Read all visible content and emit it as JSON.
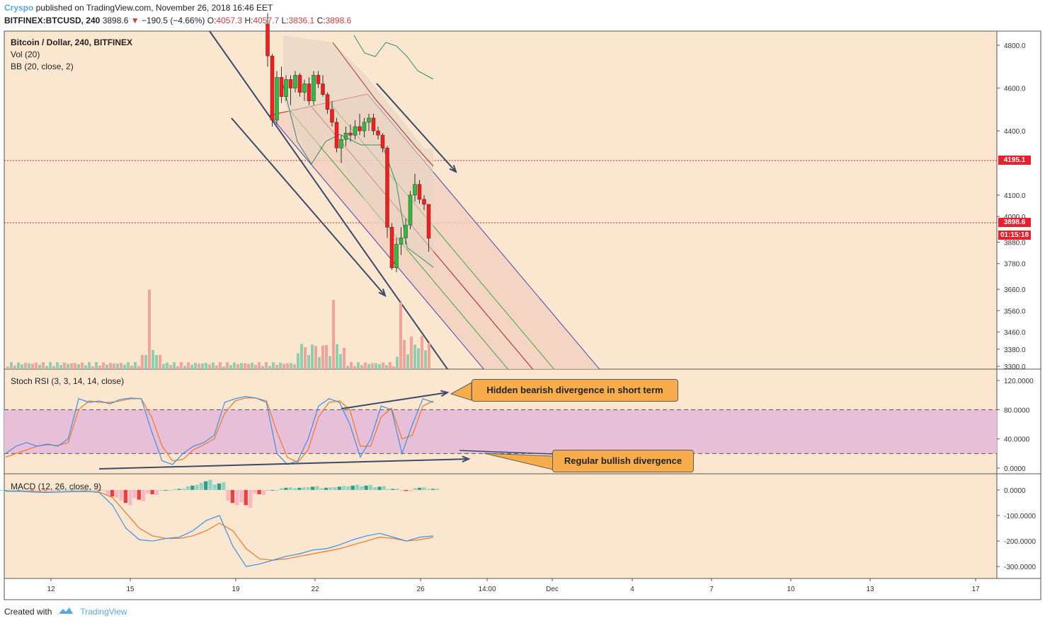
{
  "header": {
    "author": "Cryspo",
    "published": " published on TradingView.com, November 26, 2018 16:46 EET",
    "symbol": "BITFINEX:BTCUSD, 240",
    "last": "3898.6",
    "change": "−190.5 (−4.66%)",
    "o_label": "O:",
    "o": "4057.3",
    "h_label": "H:",
    "h": "4057.7",
    "l_label": "L:",
    "l": "3836.1",
    "c_label": "C:",
    "c": "3898.6"
  },
  "legend": {
    "title": "Bitcoin / Dollar, 240, BITFINEX",
    "vol": "Vol (20)",
    "bb": "BB (20, close, 2)",
    "stoch": "Stoch RSI (3, 3, 14, 14, close)",
    "macd": "MACD (12, 26, close, 9)"
  },
  "badges": {
    "level": "4195.1",
    "price": "3898.6",
    "timer": "01:15:18"
  },
  "callouts": {
    "hidden": "Hidden bearish divergence in short term",
    "regular": "Regular bullish divergence"
  },
  "footer": {
    "created": "Created with",
    "brand": "TradingView"
  },
  "colors": {
    "background": "#fbe6cf",
    "up": "#2dbd3d",
    "down": "#ff1a1a",
    "stoch_band": "#e7bfd9",
    "callout": "#f7ad4b",
    "k_line": "#3c8fe6",
    "d_line": "#f07a22"
  },
  "chart_data": {
    "type": "candlestick",
    "price_axis": {
      "ticks": [
        4800,
        4600,
        4400,
        4100,
        4000,
        3880,
        3780,
        3660,
        3560,
        3460,
        3380,
        3300
      ],
      "range": [
        3300,
        4800
      ]
    },
    "time_axis": [
      "12",
      "15",
      "19",
      "22",
      "26",
      "14:00",
      "Dec",
      "4",
      "7",
      "10",
      "13",
      "17"
    ],
    "candles": [
      [
        4900,
        4950,
        4700,
        4750
      ],
      [
        4750,
        4760,
        4420,
        4450
      ],
      [
        4450,
        4680,
        4430,
        4650
      ],
      [
        4650,
        4700,
        4530,
        4560
      ],
      [
        4560,
        4660,
        4540,
        4640
      ],
      [
        4640,
        4660,
        4520,
        4600
      ],
      [
        4600,
        4680,
        4580,
        4660
      ],
      [
        4660,
        4670,
        4560,
        4580
      ],
      [
        4580,
        4640,
        4540,
        4620
      ],
      [
        4620,
        4650,
        4520,
        4540
      ],
      [
        4540,
        4680,
        4520,
        4660
      ],
      [
        4660,
        4680,
        4600,
        4620
      ],
      [
        4620,
        4660,
        4560,
        4570
      ],
      [
        4570,
        4580,
        4480,
        4500
      ],
      [
        4500,
        4540,
        4420,
        4440
      ],
      [
        4440,
        4460,
        4300,
        4320
      ],
      [
        4320,
        4380,
        4250,
        4360
      ],
      [
        4360,
        4420,
        4330,
        4390
      ],
      [
        4390,
        4430,
        4350,
        4380
      ],
      [
        4380,
        4450,
        4360,
        4420
      ],
      [
        4420,
        4480,
        4380,
        4400
      ],
      [
        4400,
        4460,
        4370,
        4440
      ],
      [
        4440,
        4480,
        4400,
        4460
      ],
      [
        4460,
        4480,
        4380,
        4400
      ],
      [
        4400,
        4420,
        4360,
        4380
      ],
      [
        4380,
        4390,
        4300,
        4320
      ],
      [
        4320,
        4330,
        3900,
        3950
      ],
      [
        3950,
        3970,
        3750,
        3760
      ],
      [
        3760,
        3900,
        3740,
        3870
      ],
      [
        3870,
        3950,
        3820,
        3900
      ],
      [
        3900,
        3990,
        3870,
        3960
      ],
      [
        3960,
        4120,
        3940,
        4100
      ],
      [
        4100,
        4200,
        4070,
        4150
      ],
      [
        4150,
        4170,
        4060,
        4080
      ],
      [
        4080,
        4100,
        4030,
        4057
      ],
      [
        4057,
        4057,
        3836,
        3898
      ]
    ],
    "volume_peaks": [
      {
        "x": "14",
        "value": 650
      },
      {
        "x": "20",
        "value": 550
      },
      {
        "x": "25",
        "value": 540
      }
    ],
    "stoch_rsi": {
      "ticks": [
        "120.0000",
        "80.0000",
        "40.0000",
        "0.0000"
      ],
      "range": [
        0,
        120
      ],
      "band": [
        20,
        80
      ],
      "k": [
        20,
        30,
        35,
        30,
        33,
        30,
        40,
        95,
        90,
        92,
        88,
        94,
        96,
        95,
        50,
        10,
        5,
        20,
        30,
        35,
        45,
        90,
        95,
        98,
        96,
        90,
        20,
        5,
        10,
        40,
        85,
        95,
        90,
        60,
        15,
        40,
        85,
        80,
        20,
        60,
        95,
        90
      ],
      "d": [
        15,
        20,
        25,
        30,
        32,
        31,
        35,
        80,
        92,
        90,
        90,
        92,
        95,
        95,
        70,
        30,
        10,
        12,
        25,
        32,
        40,
        75,
        92,
        96,
        96,
        92,
        50,
        15,
        8,
        25,
        70,
        90,
        92,
        80,
        30,
        30,
        70,
        82,
        40,
        45,
        85,
        92
      ]
    },
    "macd": {
      "ticks": [
        "0.0000",
        "-100.0000",
        "-200.0000",
        "-300.0000"
      ],
      "range": [
        -330,
        30
      ],
      "macd": [
        -5,
        -5,
        -8,
        -10,
        -8,
        -6,
        -5,
        -10,
        -60,
        -150,
        -195,
        -200,
        -190,
        -185,
        -160,
        -120,
        -100,
        -220,
        -300,
        -290,
        -275,
        -260,
        -250,
        -235,
        -230,
        -215,
        -195,
        -180,
        -170,
        -185,
        -200,
        -185,
        -180
      ],
      "signal": [
        -5,
        -5,
        -6,
        -8,
        -8,
        -7,
        -6,
        -8,
        -30,
        -90,
        -150,
        -180,
        -190,
        -190,
        -180,
        -160,
        -130,
        -160,
        -230,
        -270,
        -275,
        -270,
        -260,
        -250,
        -240,
        -230,
        -215,
        -200,
        -185,
        -190,
        -200,
        -195,
        -185
      ],
      "histogram": [
        0,
        0,
        -2,
        -2,
        0,
        1,
        1,
        -2,
        -30,
        -60,
        -45,
        -20,
        0,
        5,
        20,
        40,
        30,
        -60,
        -70,
        -20,
        0,
        10,
        10,
        15,
        10,
        15,
        20,
        20,
        15,
        5,
        -5,
        10,
        5
      ]
    }
  }
}
